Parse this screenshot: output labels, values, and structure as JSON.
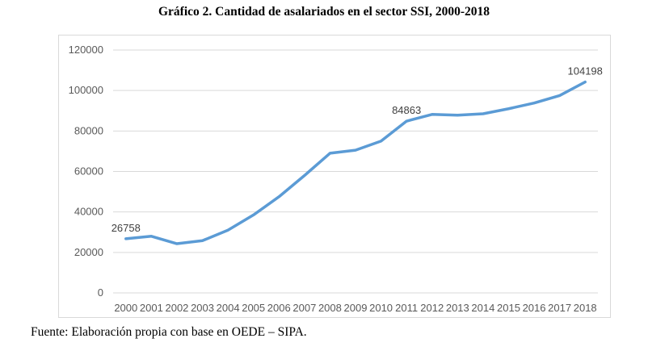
{
  "chart_data": {
    "type": "line",
    "title": "Gráfico 2. Cantidad de asalariados en el sector SSI, 2000-2018",
    "source": "Fuente: Elaboración propia con base en OEDE – SIPA.",
    "categories": [
      "2000",
      "2001",
      "2002",
      "2003",
      "2004",
      "2005",
      "2006",
      "2007",
      "2008",
      "2009",
      "2010",
      "2011",
      "2012",
      "2013",
      "2014",
      "2015",
      "2016",
      "2017",
      "2018"
    ],
    "series": [
      {
        "values": [
          26758,
          28000,
          24300,
          25800,
          31000,
          38500,
          47500,
          58000,
          69000,
          70500,
          75000,
          84863,
          88200,
          87800,
          88500,
          91000,
          93800,
          97500,
          104198
        ],
        "color": "#5b9bd5"
      }
    ],
    "data_labels": [
      {
        "index": 0,
        "text": "26758"
      },
      {
        "index": 11,
        "text": "84863"
      },
      {
        "index": 18,
        "text": "104198"
      }
    ],
    "yticks": [
      "0",
      "20000",
      "40000",
      "60000",
      "80000",
      "100000",
      "120000"
    ],
    "ylim": [
      0,
      120000
    ],
    "grid": true,
    "xlabel": "",
    "ylabel": ""
  }
}
